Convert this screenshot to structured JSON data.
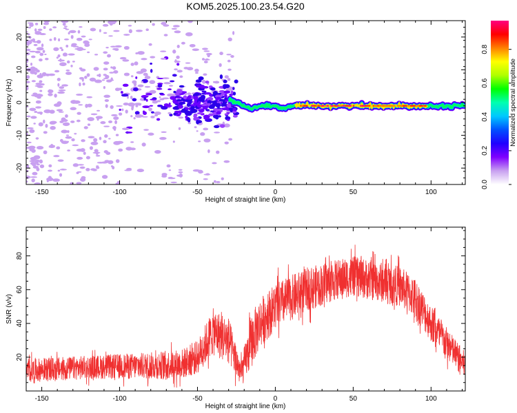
{
  "figure": {
    "title": "KOM5.2025.100.23.54.G20"
  },
  "chart_data": [
    {
      "type": "heatmap",
      "name": "spectrogram",
      "xlabel": "Height of straight line (km)",
      "ylabel": "Frequency (Hz)",
      "xlim": [
        -160,
        122
      ],
      "ylim": [
        -25,
        25
      ],
      "xticks": [
        -150,
        -100,
        -50,
        0,
        50,
        100
      ],
      "yticks": [
        -20,
        -10,
        0,
        10,
        20
      ],
      "colorbar": {
        "label": "Normalized spectral amplitude",
        "range": [
          0,
          0.97
        ],
        "ticks": [
          0.0,
          0.2,
          0.4,
          0.6,
          0.8
        ],
        "colormap": [
          "#ffffff",
          "#c8a0f0",
          "#8000ff",
          "#2000ff",
          "#0050ff",
          "#00c8ff",
          "#00ffb0",
          "#00ff00",
          "#b0ff00",
          "#ffff00",
          "#ff8000",
          "#ff0000",
          "#ff0080"
        ]
      },
      "ridge": {
        "description_points_x": [
          -30,
          -25,
          -20,
          -15,
          -10,
          -5,
          0,
          5,
          10,
          20,
          40,
          60,
          80,
          95,
          100,
          122
        ],
        "description_points_y": [
          1,
          0,
          -1,
          -2,
          -1,
          -1,
          -1,
          -2,
          -1,
          -1,
          -1,
          -1,
          -1,
          -1,
          -1,
          -1
        ]
      }
    },
    {
      "type": "line",
      "name": "snr",
      "xlabel": "Height of straight line (km)",
      "ylabel": "SNR (v/v)",
      "xlim": [
        -160,
        122
      ],
      "ylim": [
        0,
        97
      ],
      "xticks": [
        -150,
        -100,
        -50,
        0,
        50,
        100
      ],
      "yticks": [
        20,
        40,
        60,
        80
      ],
      "series": [
        {
          "color": "#f03030",
          "envelope_x": [
            -160,
            -120,
            -80,
            -60,
            -50,
            -40,
            -30,
            -22,
            -15,
            -10,
            0,
            20,
            40,
            50,
            60,
            80,
            90,
            100,
            110,
            122
          ],
          "envelope_mean": [
            12,
            14,
            15,
            16,
            20,
            35,
            30,
            10,
            30,
            40,
            50,
            60,
            66,
            68,
            66,
            62,
            55,
            40,
            28,
            15
          ],
          "envelope_spread": [
            7,
            7,
            8,
            9,
            10,
            14,
            14,
            8,
            16,
            15,
            14,
            13,
            12,
            12,
            12,
            12,
            12,
            11,
            10,
            8
          ]
        }
      ]
    }
  ]
}
